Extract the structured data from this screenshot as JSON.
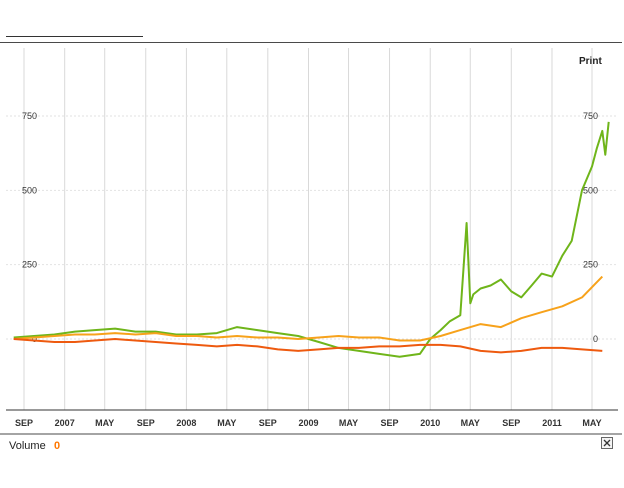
{
  "header": {
    "print_label": "Print"
  },
  "footer": {
    "volume_label": "Volume",
    "volume_value": "0"
  },
  "icons": {
    "close": "close-icon"
  },
  "colors": {
    "series_green": "#6fb51a",
    "series_orange": "#f7a21b",
    "series_red": "#ee5a0f",
    "grid": "#d9d9d9",
    "volume_value": "#ff7700"
  },
  "chart_data": {
    "type": "line",
    "title": "",
    "xlabel": "",
    "ylabel": "",
    "ylim": [
      -100,
      850
    ],
    "y_ticks": [
      0,
      250,
      500,
      750
    ],
    "y_tick_labels": [
      "0",
      "250",
      "500",
      "750"
    ],
    "x_tick_labels": [
      "SEP",
      "2007",
      "MAY",
      "SEP",
      "2008",
      "MAY",
      "SEP",
      "2009",
      "MAY",
      "SEP",
      "2010",
      "MAY",
      "SEP",
      "2011",
      "MAY"
    ],
    "x_ticks": [
      "2006-09",
      "2007-01",
      "2007-05",
      "2007-09",
      "2008-01",
      "2008-05",
      "2008-09",
      "2009-01",
      "2009-05",
      "2009-09",
      "2010-01",
      "2010-05",
      "2010-09",
      "2011-01",
      "2011-05"
    ],
    "grid": true,
    "legend": "none",
    "series": [
      {
        "color": "#6fb51a",
        "x": [
          "2006-08",
          "2006-10",
          "2006-12",
          "2007-02",
          "2007-04",
          "2007-06",
          "2007-08",
          "2007-10",
          "2007-12",
          "2008-02",
          "2008-04",
          "2008-06",
          "2008-08",
          "2008-10",
          "2008-12",
          "2009-02",
          "2009-04",
          "2009-06",
          "2009-08",
          "2009-10",
          "2009-12",
          "2010-01",
          "2010-02",
          "2010-03",
          "2010-04",
          "2010-04-20",
          "2010-05",
          "2010-05-10",
          "2010-06",
          "2010-07",
          "2010-08",
          "2010-09",
          "2010-10",
          "2010-11",
          "2010-12",
          "2011-01",
          "2011-02",
          "2011-03",
          "2011-04",
          "2011-05",
          "2011-05-15",
          "2011-06",
          "2011-06-10",
          "2011-06-20"
        ],
        "y": [
          5,
          10,
          15,
          25,
          30,
          35,
          25,
          25,
          15,
          15,
          20,
          40,
          30,
          20,
          10,
          -10,
          -30,
          -40,
          -50,
          -60,
          -50,
          0,
          30,
          60,
          80,
          390,
          120,
          150,
          170,
          180,
          200,
          160,
          140,
          180,
          220,
          210,
          280,
          330,
          500,
          580,
          640,
          700,
          620,
          730
        ]
      },
      {
        "color": "#f7a21b",
        "x": [
          "2006-08",
          "2006-10",
          "2006-12",
          "2007-02",
          "2007-04",
          "2007-06",
          "2007-08",
          "2007-10",
          "2007-12",
          "2008-02",
          "2008-04",
          "2008-06",
          "2008-08",
          "2008-10",
          "2008-12",
          "2009-02",
          "2009-04",
          "2009-06",
          "2009-08",
          "2009-10",
          "2009-12",
          "2010-02",
          "2010-04",
          "2010-06",
          "2010-08",
          "2010-10",
          "2010-12",
          "2011-02",
          "2011-04",
          "2011-06"
        ],
        "y": [
          0,
          5,
          10,
          15,
          15,
          20,
          15,
          20,
          10,
          10,
          5,
          10,
          5,
          5,
          0,
          5,
          10,
          5,
          5,
          -5,
          -5,
          10,
          30,
          50,
          40,
          70,
          90,
          110,
          140,
          210
        ]
      },
      {
        "color": "#ee5a0f",
        "x": [
          "2006-08",
          "2006-10",
          "2006-12",
          "2007-02",
          "2007-04",
          "2007-06",
          "2007-08",
          "2007-10",
          "2007-12",
          "2008-02",
          "2008-04",
          "2008-06",
          "2008-08",
          "2008-10",
          "2008-12",
          "2009-02",
          "2009-04",
          "2009-06",
          "2009-08",
          "2009-10",
          "2009-12",
          "2010-02",
          "2010-04",
          "2010-06",
          "2010-08",
          "2010-10",
          "2010-12",
          "2011-02",
          "2011-04",
          "2011-06"
        ],
        "y": [
          0,
          -5,
          -10,
          -10,
          -5,
          0,
          -5,
          -10,
          -15,
          -20,
          -25,
          -20,
          -25,
          -35,
          -40,
          -35,
          -30,
          -30,
          -25,
          -25,
          -20,
          -20,
          -25,
          -40,
          -45,
          -40,
          -30,
          -30,
          -35,
          -40
        ]
      }
    ]
  }
}
